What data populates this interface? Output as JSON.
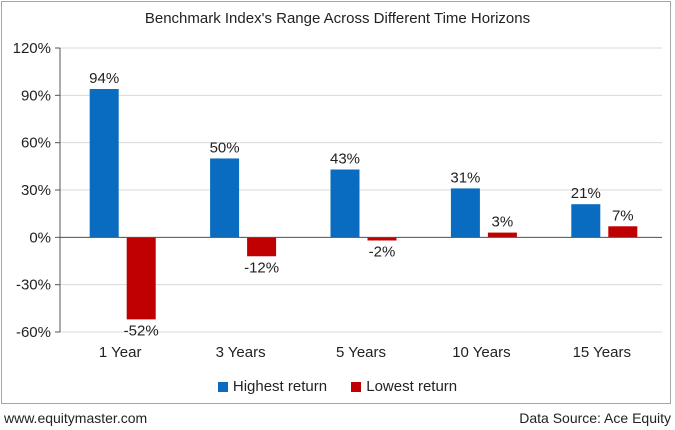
{
  "chart_data": {
    "type": "bar",
    "title": "Benchmark Index's Range Across Different Time Horizons",
    "categories": [
      "1 Year",
      "3 Years",
      "5 Years",
      "10 Years",
      "15 Years"
    ],
    "series": [
      {
        "name": "Highest return",
        "color": "#0a6cc0",
        "values": [
          94,
          50,
          43,
          31,
          21
        ],
        "labels": [
          "94%",
          "50%",
          "43%",
          "31%",
          "21%"
        ]
      },
      {
        "name": "Lowest return",
        "color": "#c00000",
        "values": [
          -52,
          -12,
          -2,
          3,
          7
        ],
        "labels": [
          "-52%",
          "-12%",
          "-2%",
          "3%",
          "7%"
        ]
      }
    ],
    "ylim": [
      -60,
      120
    ],
    "yticks": [
      -60,
      -30,
      0,
      30,
      60,
      90,
      120
    ],
    "ytick_labels": [
      "-60%",
      "-30%",
      "0%",
      "30%",
      "60%",
      "90%",
      "120%"
    ],
    "xlabel": "",
    "ylabel": "",
    "grid": true,
    "legend_position": "bottom"
  },
  "footer": {
    "source_site": "www.equitymaster.com",
    "data_source": "Data Source: Ace Equity"
  }
}
